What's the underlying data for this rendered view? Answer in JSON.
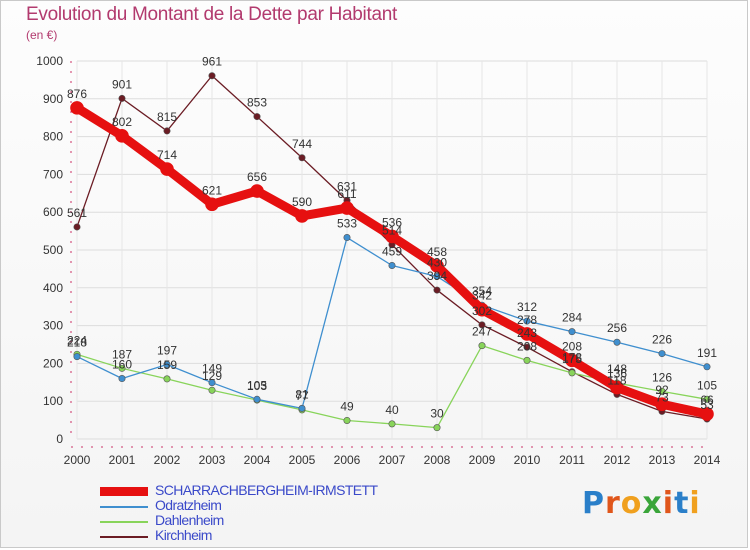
{
  "title": "Evolution du Montant de la Dette par Habitant",
  "subtitle": "(en €)",
  "logo": {
    "letters": [
      "P",
      "r",
      "o",
      "x",
      "i",
      "t",
      "i"
    ],
    "colors": [
      "#2a7fc9",
      "#e0561b",
      "#f0a01e",
      "#3aa53a",
      "#e0561b",
      "#2a7fc9",
      "#f0a01e"
    ]
  },
  "chart_data": {
    "type": "line",
    "title": "Evolution du Montant de la Dette par Habitant",
    "ylabel": "(en €)",
    "xlabel": "",
    "ylim": [
      0,
      1000
    ],
    "yticks": [
      0,
      100,
      200,
      300,
      400,
      500,
      600,
      700,
      800,
      900,
      1000
    ],
    "categories": [
      "2000",
      "2001",
      "2002",
      "2003",
      "2004",
      "2005",
      "2006",
      "2007",
      "2008",
      "2009",
      "2010",
      "2011",
      "2012",
      "2013",
      "2014"
    ],
    "grid": true,
    "series": [
      {
        "name": "Kirchheim",
        "color": "#6b1c24",
        "bold": false,
        "values": [
          561,
          901,
          815,
          961,
          853,
          744,
          631,
          514,
          394,
          302,
          243,
          178,
          118,
          73,
          53
        ],
        "labels": [
          "561",
          "901",
          "815",
          "961",
          "853",
          "744",
          "631",
          "514",
          "394",
          "302",
          "243",
          "178",
          "118",
          "73",
          "53"
        ]
      },
      {
        "name": "Dahlenheim",
        "color": "#88d45a",
        "bold": false,
        "values": [
          224,
          187,
          159,
          129,
          103,
          77,
          49,
          40,
          30,
          247,
          208,
          175,
          148,
          126,
          105
        ],
        "labels": [
          "224",
          "187",
          "159",
          "129",
          "103",
          "77",
          "49",
          "40",
          "30",
          "247",
          "208",
          "175",
          "148",
          "126",
          "105"
        ]
      },
      {
        "name": "Odratzheim",
        "color": "#3f8fcf",
        "bold": false,
        "values": [
          218,
          160,
          197,
          149,
          105,
          81,
          533,
          459,
          430,
          354,
          312,
          284,
          256,
          226,
          191
        ],
        "labels": [
          "218",
          "160",
          "197",
          "149",
          "105",
          "81",
          "533",
          "459",
          "430",
          "354",
          "312",
          "284",
          "256",
          "226",
          "191"
        ]
      },
      {
        "name": "SCHARRACHBERGHEIM-IRMSTETT",
        "color": "#e61010",
        "bold": true,
        "values": [
          876,
          802,
          714,
          621,
          656,
          590,
          611,
          536,
          458,
          342,
          278,
          208,
          136,
          92,
          66
        ],
        "labels": [
          "876",
          "802",
          "714",
          "621",
          "656",
          "590",
          "611",
          "536",
          "458",
          "342",
          "278",
          "208",
          "136",
          "92",
          "66"
        ]
      }
    ]
  },
  "legend": [
    {
      "name": "SCHARRACHBERGHEIM-IRMSTETT",
      "color": "#e61010",
      "text_color": "#3a49c9",
      "bold": true
    },
    {
      "name": "Odratzheim",
      "color": "#3f8fcf",
      "text_color": "#3a49c9",
      "bold": false
    },
    {
      "name": "Dahlenheim",
      "color": "#88d45a",
      "text_color": "#3a49c9",
      "bold": false
    },
    {
      "name": "Kirchheim",
      "color": "#6b1c24",
      "text_color": "#3a49c9",
      "bold": false
    }
  ]
}
